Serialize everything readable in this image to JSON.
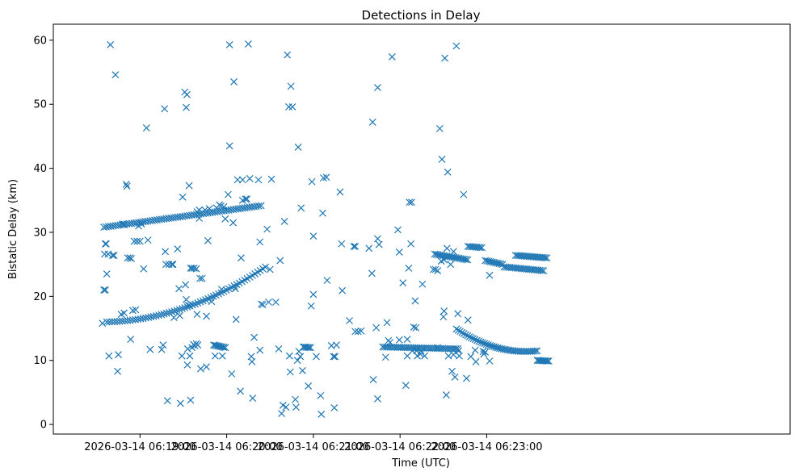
{
  "chart_data": {
    "type": "scatter",
    "title": "Detections in Delay",
    "xlabel": "Time (UTC)",
    "ylabel": "Bistatic Delay (km)",
    "marker": "x",
    "color": "#1f77b4",
    "xlim_seconds": [
      -35,
      475
    ],
    "ylim": [
      -1.5,
      62.5
    ],
    "x_origin": "2026-03-14 06:18:35",
    "x_ticks": [
      {
        "sec": 25,
        "label": "2026-03-14 06:19:00"
      },
      {
        "sec": 85,
        "label": "2026-03-14 06:20:00"
      },
      {
        "sec": 145,
        "label": "2026-03-14 06:21:00"
      },
      {
        "sec": 205,
        "label": "2026-03-14 06:22:00"
      },
      {
        "sec": 265,
        "label": "2026-03-14 06:23:00"
      }
    ],
    "y_ticks": [
      0,
      10,
      20,
      30,
      40,
      50,
      60
    ],
    "tracks": [
      {
        "name": "track-a",
        "t0": 0,
        "t1": 110,
        "step": 1.6,
        "y0": 30.8,
        "y1": 34.2,
        "curve": 0
      },
      {
        "name": "track-b",
        "t0": 2,
        "t1": 112,
        "step": 1.8,
        "y0": 16.0,
        "y1": 24.6,
        "curve": -2.0
      },
      {
        "name": "track-c",
        "t0": 193,
        "t1": 245,
        "step": 1.3,
        "y0": 12.1,
        "y1": 11.8,
        "curve": 0
      },
      {
        "name": "track-d",
        "t0": 244,
        "t1": 300,
        "step": 1.3,
        "y0": 14.9,
        "y1": 11.5,
        "curve": -1.2
      },
      {
        "name": "track-e",
        "t0": 229,
        "t1": 252,
        "step": 1.2,
        "y0": 26.6,
        "y1": 25.7,
        "curve": 0
      },
      {
        "name": "track-f",
        "t0": 252,
        "t1": 262,
        "step": 1.2,
        "y0": 27.8,
        "y1": 27.6,
        "curve": 0
      },
      {
        "name": "track-g",
        "t0": 264,
        "t1": 276,
        "step": 1.2,
        "y0": 25.6,
        "y1": 25.0,
        "curve": 0
      },
      {
        "name": "track-h",
        "t0": 285,
        "t1": 307,
        "step": 1.2,
        "y0": 26.4,
        "y1": 26.0,
        "curve": 0
      },
      {
        "name": "track-i",
        "t0": 277,
        "t1": 305,
        "step": 1.3,
        "y0": 24.6,
        "y1": 24.0,
        "curve": 0
      },
      {
        "name": "track-j",
        "t0": 76,
        "t1": 84,
        "step": 1.0,
        "y0": 12.4,
        "y1": 12.0,
        "curve": 0
      },
      {
        "name": "track-k",
        "t0": 138,
        "t1": 143,
        "step": 1.0,
        "y0": 12.1,
        "y1": 12.0,
        "curve": 0
      },
      {
        "name": "track-l",
        "t0": 300,
        "t1": 308,
        "step": 1.0,
        "y0": 10.0,
        "y1": 9.9,
        "curve": 0
      }
    ],
    "points": [
      [
        0,
        21.0
      ],
      [
        1,
        21.0
      ],
      [
        1,
        28.2
      ],
      [
        1.6,
        28.2
      ],
      [
        0.5,
        26.6
      ],
      [
        3,
        26.6
      ],
      [
        2,
        23.5
      ],
      [
        3.5,
        10.7
      ],
      [
        4.5,
        59.3
      ],
      [
        6,
        26.4
      ],
      [
        7,
        26.4
      ],
      [
        8,
        54.6
      ],
      [
        10,
        10.9
      ],
      [
        9.5,
        8.3
      ],
      [
        -1,
        15.8
      ],
      [
        15.5,
        37.5
      ],
      [
        16,
        37.2
      ],
      [
        16.5,
        26.0
      ],
      [
        18,
        26.0
      ],
      [
        19,
        25.9
      ],
      [
        21,
        28.6
      ],
      [
        23,
        28.6
      ],
      [
        25,
        28.6
      ],
      [
        18.5,
        13.3
      ],
      [
        27.5,
        24.3
      ],
      [
        29.5,
        46.3
      ],
      [
        30.5,
        28.8
      ],
      [
        32,
        11.7
      ],
      [
        40,
        11.7
      ],
      [
        41,
        12.4
      ],
      [
        42,
        49.3
      ],
      [
        42.5,
        27.0
      ],
      [
        43,
        25.0
      ],
      [
        44,
        3.7
      ],
      [
        45,
        25.0
      ],
      [
        47,
        25.0
      ],
      [
        47.8,
        25.0
      ],
      [
        48.5,
        16.7
      ],
      [
        51,
        27.4
      ],
      [
        52,
        21.2
      ],
      [
        52.5,
        17.0
      ],
      [
        53,
        3.3
      ],
      [
        54,
        10.7
      ],
      [
        54.5,
        35.5
      ],
      [
        56,
        51.9
      ],
      [
        57,
        49.5
      ],
      [
        57.5,
        51.5
      ],
      [
        57.8,
        9.3
      ],
      [
        58,
        11.8
      ],
      [
        59,
        37.3
      ],
      [
        58.5,
        18.6
      ],
      [
        59.5,
        10.7
      ],
      [
        60,
        3.8
      ],
      [
        56.5,
        21.8
      ],
      [
        57,
        19.5
      ],
      [
        61,
        12.0
      ],
      [
        62,
        12.5
      ],
      [
        63,
        12.3
      ],
      [
        64,
        12.6
      ],
      [
        65,
        12.4
      ],
      [
        60,
        24.4
      ],
      [
        61,
        24.4
      ],
      [
        62.5,
        24.4
      ],
      [
        64,
        24.3
      ],
      [
        64.5,
        33.2
      ],
      [
        66,
        32.2
      ],
      [
        64.5,
        17.2
      ],
      [
        66,
        33.5
      ],
      [
        66.5,
        22.8
      ],
      [
        68,
        22.8
      ],
      [
        70,
        33.5
      ],
      [
        67,
        8.7
      ],
      [
        71,
        9.0
      ],
      [
        71,
        16.9
      ],
      [
        72,
        28.7
      ],
      [
        73,
        33.7
      ],
      [
        74.5,
        19.2
      ],
      [
        77,
        10.7
      ],
      [
        78,
        33.8
      ],
      [
        80,
        34.3
      ],
      [
        81,
        34.1
      ],
      [
        81.5,
        21.1
      ],
      [
        82,
        10.7
      ],
      [
        83,
        34.0
      ],
      [
        84,
        32.1
      ],
      [
        86,
        35.9
      ],
      [
        87,
        59.3
      ],
      [
        87,
        43.5
      ],
      [
        88.5,
        7.9
      ],
      [
        89.5,
        31.5
      ],
      [
        90,
        53.5
      ],
      [
        91,
        21.2
      ],
      [
        91.5,
        16.4
      ],
      [
        92.5,
        38.2
      ],
      [
        94.5,
        5.2
      ],
      [
        95,
        26.0
      ],
      [
        96,
        35.0
      ],
      [
        96,
        38.2
      ],
      [
        98,
        35.2
      ],
      [
        99,
        35.2
      ],
      [
        100,
        59.4
      ],
      [
        101,
        38.4
      ],
      [
        102,
        10.6
      ],
      [
        102.5,
        9.8
      ],
      [
        103,
        4.1
      ],
      [
        104,
        13.6
      ],
      [
        107,
        38.2
      ],
      [
        108,
        28.5
      ],
      [
        108,
        11.6
      ],
      [
        109,
        18.8
      ],
      [
        110,
        18.7
      ],
      [
        113,
        30.5
      ],
      [
        114,
        19.1
      ],
      [
        115,
        24.2
      ],
      [
        116,
        38.3
      ],
      [
        119,
        19.1
      ],
      [
        121,
        11.8
      ],
      [
        122,
        25.6
      ],
      [
        123,
        1.7
      ],
      [
        124,
        3.0
      ],
      [
        125,
        31.7
      ],
      [
        126,
        2.7
      ],
      [
        127,
        57.7
      ],
      [
        128,
        49.6
      ],
      [
        128.5,
        10.7
      ],
      [
        129,
        8.2
      ],
      [
        129.5,
        52.8
      ],
      [
        130.5,
        49.6
      ],
      [
        132.5,
        3.9
      ],
      [
        133,
        2.7
      ],
      [
        134,
        10.0
      ],
      [
        134.5,
        43.3
      ],
      [
        135,
        11.4
      ],
      [
        136,
        10.6
      ],
      [
        136.5,
        33.8
      ],
      [
        137.5,
        8.4
      ],
      [
        141.5,
        6.0
      ],
      [
        143.5,
        18.5
      ],
      [
        144,
        37.9
      ],
      [
        145,
        29.4
      ],
      [
        145,
        20.3
      ],
      [
        147,
        10.6
      ],
      [
        150,
        4.5
      ],
      [
        150.5,
        1.6
      ],
      [
        151.5,
        33.0
      ],
      [
        152,
        38.5
      ],
      [
        154,
        38.6
      ],
      [
        154.5,
        22.5
      ],
      [
        157.5,
        12.3
      ],
      [
        159,
        10.6
      ],
      [
        159.5,
        2.6
      ],
      [
        160,
        10.6
      ],
      [
        161,
        12.4
      ],
      [
        163.5,
        36.3
      ],
      [
        164.5,
        28.2
      ],
      [
        165,
        20.9
      ],
      [
        170,
        16.2
      ],
      [
        173,
        27.8
      ],
      [
        174,
        27.8
      ],
      [
        174,
        14.5
      ],
      [
        176,
        14.5
      ],
      [
        178,
        14.6
      ],
      [
        183.5,
        27.5
      ],
      [
        185.5,
        23.6
      ],
      [
        186,
        47.2
      ],
      [
        186.5,
        7.0
      ],
      [
        188.5,
        15.1
      ],
      [
        189.5,
        52.6
      ],
      [
        189.5,
        29.0
      ],
      [
        190.5,
        28.1
      ],
      [
        189.5,
        4.0
      ],
      [
        195,
        10.5
      ],
      [
        196,
        15.9
      ],
      [
        197,
        13.1
      ],
      [
        198,
        12.8
      ],
      [
        199.5,
        57.4
      ],
      [
        203.5,
        30.4
      ],
      [
        204.5,
        26.9
      ],
      [
        204.5,
        13.2
      ],
      [
        207,
        22.1
      ],
      [
        209,
        6.1
      ],
      [
        210,
        13.3
      ],
      [
        210,
        10.7
      ],
      [
        211,
        24.4
      ],
      [
        211.5,
        34.7
      ],
      [
        212.5,
        28.2
      ],
      [
        213,
        34.7
      ],
      [
        213.5,
        11.5
      ],
      [
        214.5,
        15.2
      ],
      [
        215.5,
        19.3
      ],
      [
        216,
        15.1
      ],
      [
        216.5,
        11.5
      ],
      [
        217,
        10.7
      ],
      [
        219,
        11.0
      ],
      [
        220.5,
        21.9
      ],
      [
        219.5,
        11.5
      ],
      [
        222,
        10.7
      ],
      [
        231,
        12.0
      ],
      [
        232.5,
        46.2
      ],
      [
        234,
        41.4
      ],
      [
        235.5,
        25.7
      ],
      [
        235,
        16.8
      ],
      [
        235.5,
        17.7
      ],
      [
        236,
        57.2
      ],
      [
        237,
        4.6
      ],
      [
        237.5,
        27.5
      ],
      [
        238,
        39.4
      ],
      [
        238.5,
        10.7
      ],
      [
        240,
        25.0
      ],
      [
        241,
        8.3
      ],
      [
        242,
        27.0
      ],
      [
        242,
        10.9
      ],
      [
        243,
        7.4
      ],
      [
        244,
        59.1
      ],
      [
        245,
        17.3
      ],
      [
        245.5,
        11.5
      ],
      [
        246,
        10.7
      ],
      [
        249,
        35.9
      ],
      [
        251,
        7.2
      ],
      [
        252,
        16.3
      ],
      [
        254,
        10.6
      ],
      [
        257,
        11.6
      ],
      [
        257.5,
        9.8
      ],
      [
        262.5,
        11.4
      ],
      [
        263,
        11.0
      ],
      [
        264,
        11.3
      ],
      [
        267,
        9.9
      ],
      [
        267,
        23.3
      ],
      [
        228,
        24.2
      ],
      [
        229.5,
        24.2
      ],
      [
        231,
        24.0
      ],
      [
        233.5,
        25.5
      ],
      [
        24,
        31.0
      ],
      [
        26,
        31.3
      ],
      [
        20,
        17.8
      ],
      [
        22,
        17.9
      ],
      [
        14,
        31.2
      ],
      [
        13,
        31.3
      ],
      [
        12,
        17.2
      ],
      [
        14,
        17.4
      ]
    ]
  }
}
